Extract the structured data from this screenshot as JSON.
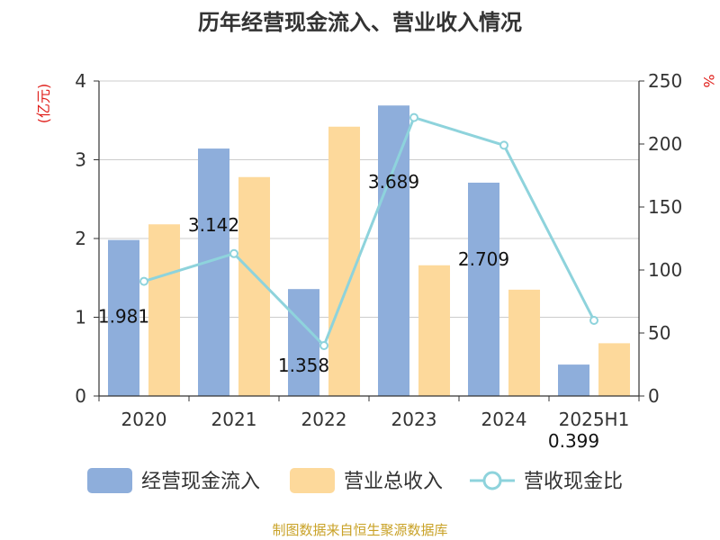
{
  "chart_data": {
    "type": "bar",
    "title": "历年经营现金流入、营业收入情况",
    "categories": [
      "2020",
      "2021",
      "2022",
      "2023",
      "2024",
      "2025H1"
    ],
    "y_left": {
      "unit": "(亿元)",
      "ylim": [
        0,
        4
      ],
      "ticks": [
        "0",
        "1",
        "2",
        "3",
        "4"
      ]
    },
    "y_right": {
      "unit": "%",
      "ylim": [
        0,
        250
      ],
      "ticks": [
        "0",
        "50",
        "100",
        "150",
        "200",
        "250"
      ]
    },
    "series": [
      {
        "name": "经营现金流入",
        "type": "bar",
        "axis": "left",
        "color": "#8eaedb",
        "values": [
          1.981,
          3.142,
          1.358,
          3.689,
          2.709,
          0.399
        ],
        "labels": [
          "1.981",
          "3.142",
          "1.358",
          "3.689",
          "2.709",
          "0.399"
        ]
      },
      {
        "name": "营业总收入",
        "type": "bar",
        "axis": "left",
        "color": "#fdd99b",
        "values": [
          2.18,
          2.78,
          3.42,
          1.66,
          1.35,
          0.67
        ]
      },
      {
        "name": "营收现金比",
        "type": "line",
        "axis": "right",
        "color": "#8ed3dc",
        "values": [
          91,
          113,
          40,
          221,
          199,
          60
        ]
      }
    ],
    "grid": true,
    "legend_position": "bottom"
  },
  "footer": {
    "source": "制图数据来自恒生聚源数据库"
  }
}
